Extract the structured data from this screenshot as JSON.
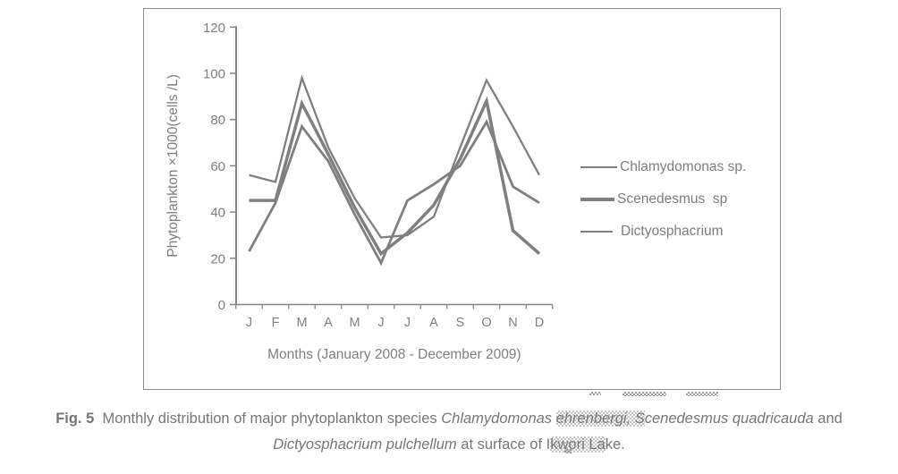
{
  "figure": {
    "caption": {
      "fig_label": "Fig. 5",
      "intro": "Monthly distribution of major phytoplankton species ",
      "species1": "Chlamydomonas ",
      "species1_highlight": "ehrenbergi, S",
      "species2": "cenedesmus quadricauda",
      "and_word": " and",
      "species3": "Dictyosphacrium pulchellum",
      "middle": " at surface of I",
      "lake_highlight": "kwori La",
      "lake_end": "ke."
    }
  },
  "colors": {
    "line_gray": "#7f7f7f",
    "axis_gray": "#858585",
    "label_gray": "#7f7f7f",
    "box_border": "#8f8f8f"
  },
  "chart_data": {
    "type": "line",
    "title": "",
    "xlabel": "Months (January 2008 - December 2009)",
    "ylabel": "Phytoplankton ×1000(cells /L)",
    "ylim": [
      0,
      120
    ],
    "yticks": [
      0,
      20,
      40,
      60,
      80,
      100,
      120
    ],
    "grid": false,
    "legend_position": "right",
    "categories": [
      "J",
      "F",
      "M",
      "A",
      "M",
      "J",
      "J",
      "A",
      "S",
      "O",
      "N",
      "D"
    ],
    "series": [
      {
        "name": "Chlamydomonas sp.",
        "values": [
          56,
          53,
          98,
          68,
          46,
          29,
          30,
          38,
          68,
          97,
          77,
          56
        ],
        "stroke_width": 2.3
      },
      {
        "name": "Scenedesmus  sp",
        "values": [
          45,
          45,
          87,
          65,
          42,
          22,
          31,
          43,
          63,
          88,
          32,
          22
        ],
        "stroke_width": 3.5
      },
      {
        "name": "Dictyosphacrium",
        "values": [
          23,
          44,
          77,
          62,
          39,
          18,
          45,
          52,
          60,
          79,
          51,
          44
        ],
        "stroke_width": 2.8
      }
    ]
  }
}
